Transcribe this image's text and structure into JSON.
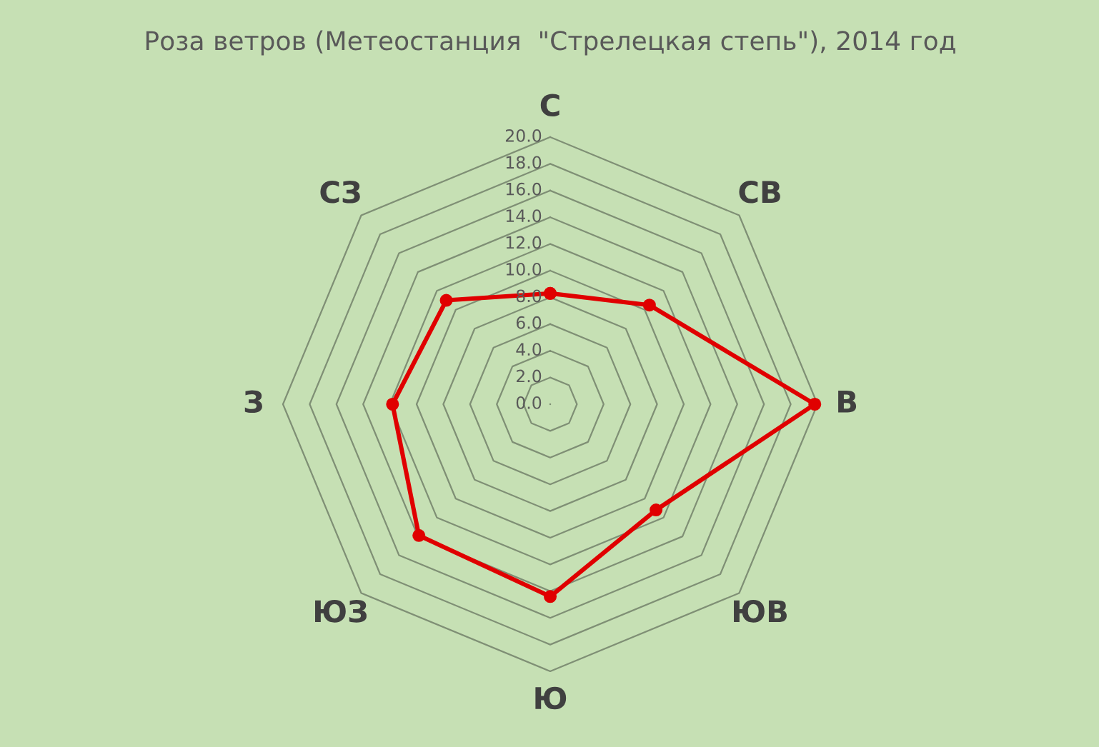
{
  "chart_data": {
    "type": "radar",
    "title": "Роза ветров (Метеостанция  \"Стрелецкая степь\"), 2014 год",
    "categories": [
      "С",
      "СВ",
      "В",
      "ЮВ",
      "Ю",
      "ЮЗ",
      "З",
      "СЗ"
    ],
    "series": [
      {
        "color": "#e00000",
        "values": [
          8.3,
          10.5,
          19.8,
          11.2,
          14.4,
          13.9,
          11.8,
          11.0
        ]
      }
    ],
    "ylim": [
      0,
      20
    ],
    "yticks": [
      {
        "value": 0,
        "label": "0.0"
      },
      {
        "value": 2,
        "label": "2.0"
      },
      {
        "value": 4,
        "label": "4.0"
      },
      {
        "value": 6,
        "label": "6.0"
      },
      {
        "value": 8,
        "label": "8.0"
      },
      {
        "value": 10,
        "label": "10.0"
      },
      {
        "value": 12,
        "label": "12.0"
      },
      {
        "value": 14,
        "label": "14.0"
      },
      {
        "value": 16,
        "label": "16.0"
      },
      {
        "value": 18,
        "label": "18.0"
      },
      {
        "value": 20,
        "label": "20.0"
      }
    ],
    "grid": true,
    "marker": "circle",
    "line_style": "solid"
  }
}
